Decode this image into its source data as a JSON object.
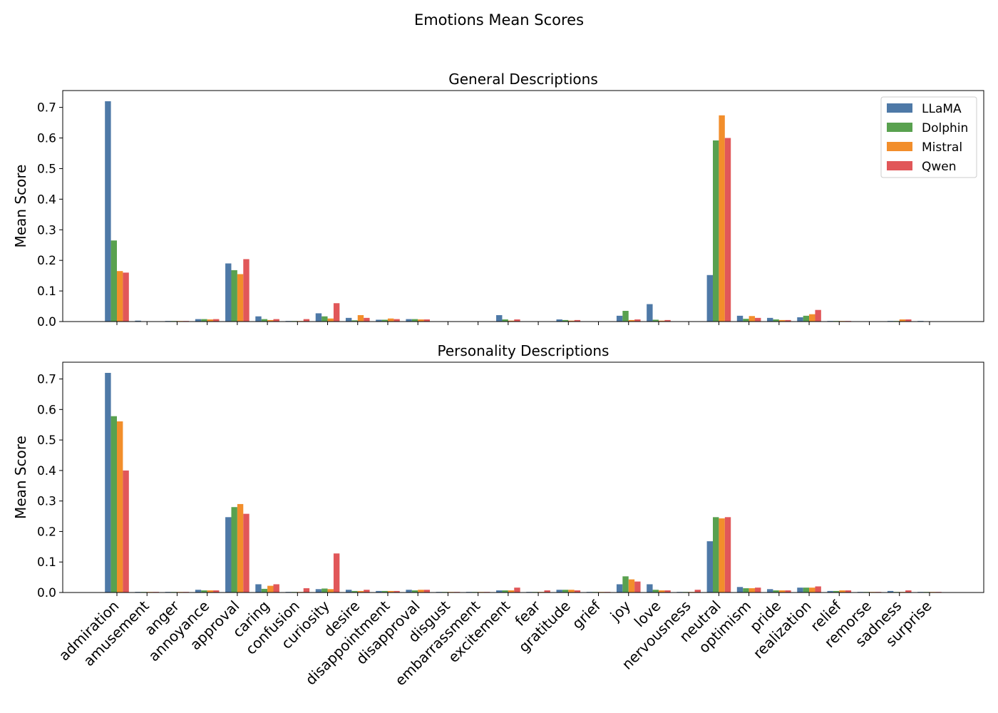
{
  "figure_title": "Emotions Mean Scores",
  "colors": {
    "LLaMA": "#4e79a7",
    "Dolphin": "#59a14f",
    "Mistral": "#f28e2b",
    "Qwen": "#e15759"
  },
  "chart_data": [
    {
      "type": "bar",
      "title": "General Descriptions",
      "xlabel": "",
      "ylabel": "Mean Score",
      "ylim": [
        0,
        0.755
      ],
      "yticks": [
        "0.0",
        "0.1",
        "0.2",
        "0.3",
        "0.4",
        "0.5",
        "0.6",
        "0.7"
      ],
      "show_xtick_labels": false,
      "legend": "top-right",
      "categories": [
        "admiration",
        "amusement",
        "anger",
        "annoyance",
        "approval",
        "caring",
        "confusion",
        "curiosity",
        "desire",
        "disappointment",
        "disapproval",
        "disgust",
        "embarrassment",
        "excitement",
        "fear",
        "gratitude",
        "grief",
        "joy",
        "love",
        "nervousness",
        "neutral",
        "optimism",
        "pride",
        "realization",
        "relief",
        "remorse",
        "sadness",
        "surprise"
      ],
      "series": [
        {
          "name": "LLaMA",
          "values": [
            0.72,
            0.003,
            0.002,
            0.008,
            0.19,
            0.017,
            0.002,
            0.027,
            0.012,
            0.006,
            0.008,
            0.001,
            0.0,
            0.021,
            0.0,
            0.007,
            0.0,
            0.019,
            0.057,
            0.0,
            0.152,
            0.019,
            0.012,
            0.014,
            0.002,
            0.0,
            0.002,
            0.002
          ]
        },
        {
          "name": "Dolphin",
          "values": [
            0.265,
            0.001,
            0.002,
            0.008,
            0.168,
            0.008,
            0.002,
            0.017,
            0.004,
            0.006,
            0.008,
            0.001,
            0.0,
            0.007,
            0.0,
            0.005,
            0.0,
            0.035,
            0.006,
            0.0,
            0.592,
            0.009,
            0.007,
            0.019,
            0.002,
            0.0,
            0.002,
            0.001
          ]
        },
        {
          "name": "Mistral",
          "values": [
            0.165,
            0.001,
            0.002,
            0.007,
            0.155,
            0.005,
            0.002,
            0.01,
            0.021,
            0.01,
            0.007,
            0.001,
            0.0,
            0.003,
            0.0,
            0.003,
            0.0,
            0.005,
            0.003,
            0.0,
            0.674,
            0.018,
            0.005,
            0.024,
            0.002,
            0.0,
            0.007,
            0.001
          ]
        },
        {
          "name": "Qwen",
          "values": [
            0.16,
            0.001,
            0.002,
            0.008,
            0.204,
            0.008,
            0.008,
            0.06,
            0.012,
            0.008,
            0.007,
            0.001,
            0.0,
            0.007,
            0.0,
            0.005,
            0.0,
            0.007,
            0.005,
            0.0,
            0.6,
            0.012,
            0.005,
            0.038,
            0.002,
            0.0,
            0.007,
            0.001
          ]
        }
      ]
    },
    {
      "type": "bar",
      "title": "Personality Descriptions",
      "xlabel": "",
      "ylabel": "Mean Score",
      "ylim": [
        0,
        0.755
      ],
      "yticks": [
        "0.0",
        "0.1",
        "0.2",
        "0.3",
        "0.4",
        "0.5",
        "0.6",
        "0.7"
      ],
      "show_xtick_labels": true,
      "categories": [
        "admiration",
        "amusement",
        "anger",
        "annoyance",
        "approval",
        "caring",
        "confusion",
        "curiosity",
        "desire",
        "disappointment",
        "disapproval",
        "disgust",
        "embarrassment",
        "excitement",
        "fear",
        "gratitude",
        "grief",
        "joy",
        "love",
        "nervousness",
        "neutral",
        "optimism",
        "pride",
        "realization",
        "relief",
        "remorse",
        "sadness",
        "surprise"
      ],
      "series": [
        {
          "name": "LLaMA",
          "values": [
            0.72,
            0.002,
            0.002,
            0.009,
            0.247,
            0.027,
            0.002,
            0.011,
            0.009,
            0.005,
            0.009,
            0.002,
            0.002,
            0.007,
            0.002,
            0.009,
            0.002,
            0.027,
            0.027,
            0.002,
            0.168,
            0.018,
            0.011,
            0.016,
            0.005,
            0.002,
            0.005,
            0.002
          ]
        },
        {
          "name": "Dolphin",
          "values": [
            0.578,
            0.002,
            0.002,
            0.007,
            0.28,
            0.012,
            0.002,
            0.013,
            0.005,
            0.005,
            0.007,
            0.002,
            0.002,
            0.007,
            0.002,
            0.009,
            0.002,
            0.053,
            0.009,
            0.002,
            0.247,
            0.014,
            0.007,
            0.016,
            0.005,
            0.002,
            0.002,
            0.002
          ]
        },
        {
          "name": "Mistral",
          "values": [
            0.561,
            0.002,
            0.002,
            0.007,
            0.29,
            0.022,
            0.002,
            0.011,
            0.005,
            0.005,
            0.009,
            0.002,
            0.002,
            0.007,
            0.002,
            0.009,
            0.002,
            0.043,
            0.007,
            0.002,
            0.243,
            0.014,
            0.007,
            0.016,
            0.007,
            0.002,
            0.002,
            0.002
          ]
        },
        {
          "name": "Qwen",
          "values": [
            0.4,
            0.002,
            0.002,
            0.007,
            0.258,
            0.027,
            0.014,
            0.128,
            0.009,
            0.005,
            0.009,
            0.002,
            0.002,
            0.016,
            0.007,
            0.007,
            0.002,
            0.036,
            0.007,
            0.009,
            0.247,
            0.016,
            0.007,
            0.02,
            0.007,
            0.002,
            0.007,
            0.002
          ]
        }
      ]
    }
  ]
}
